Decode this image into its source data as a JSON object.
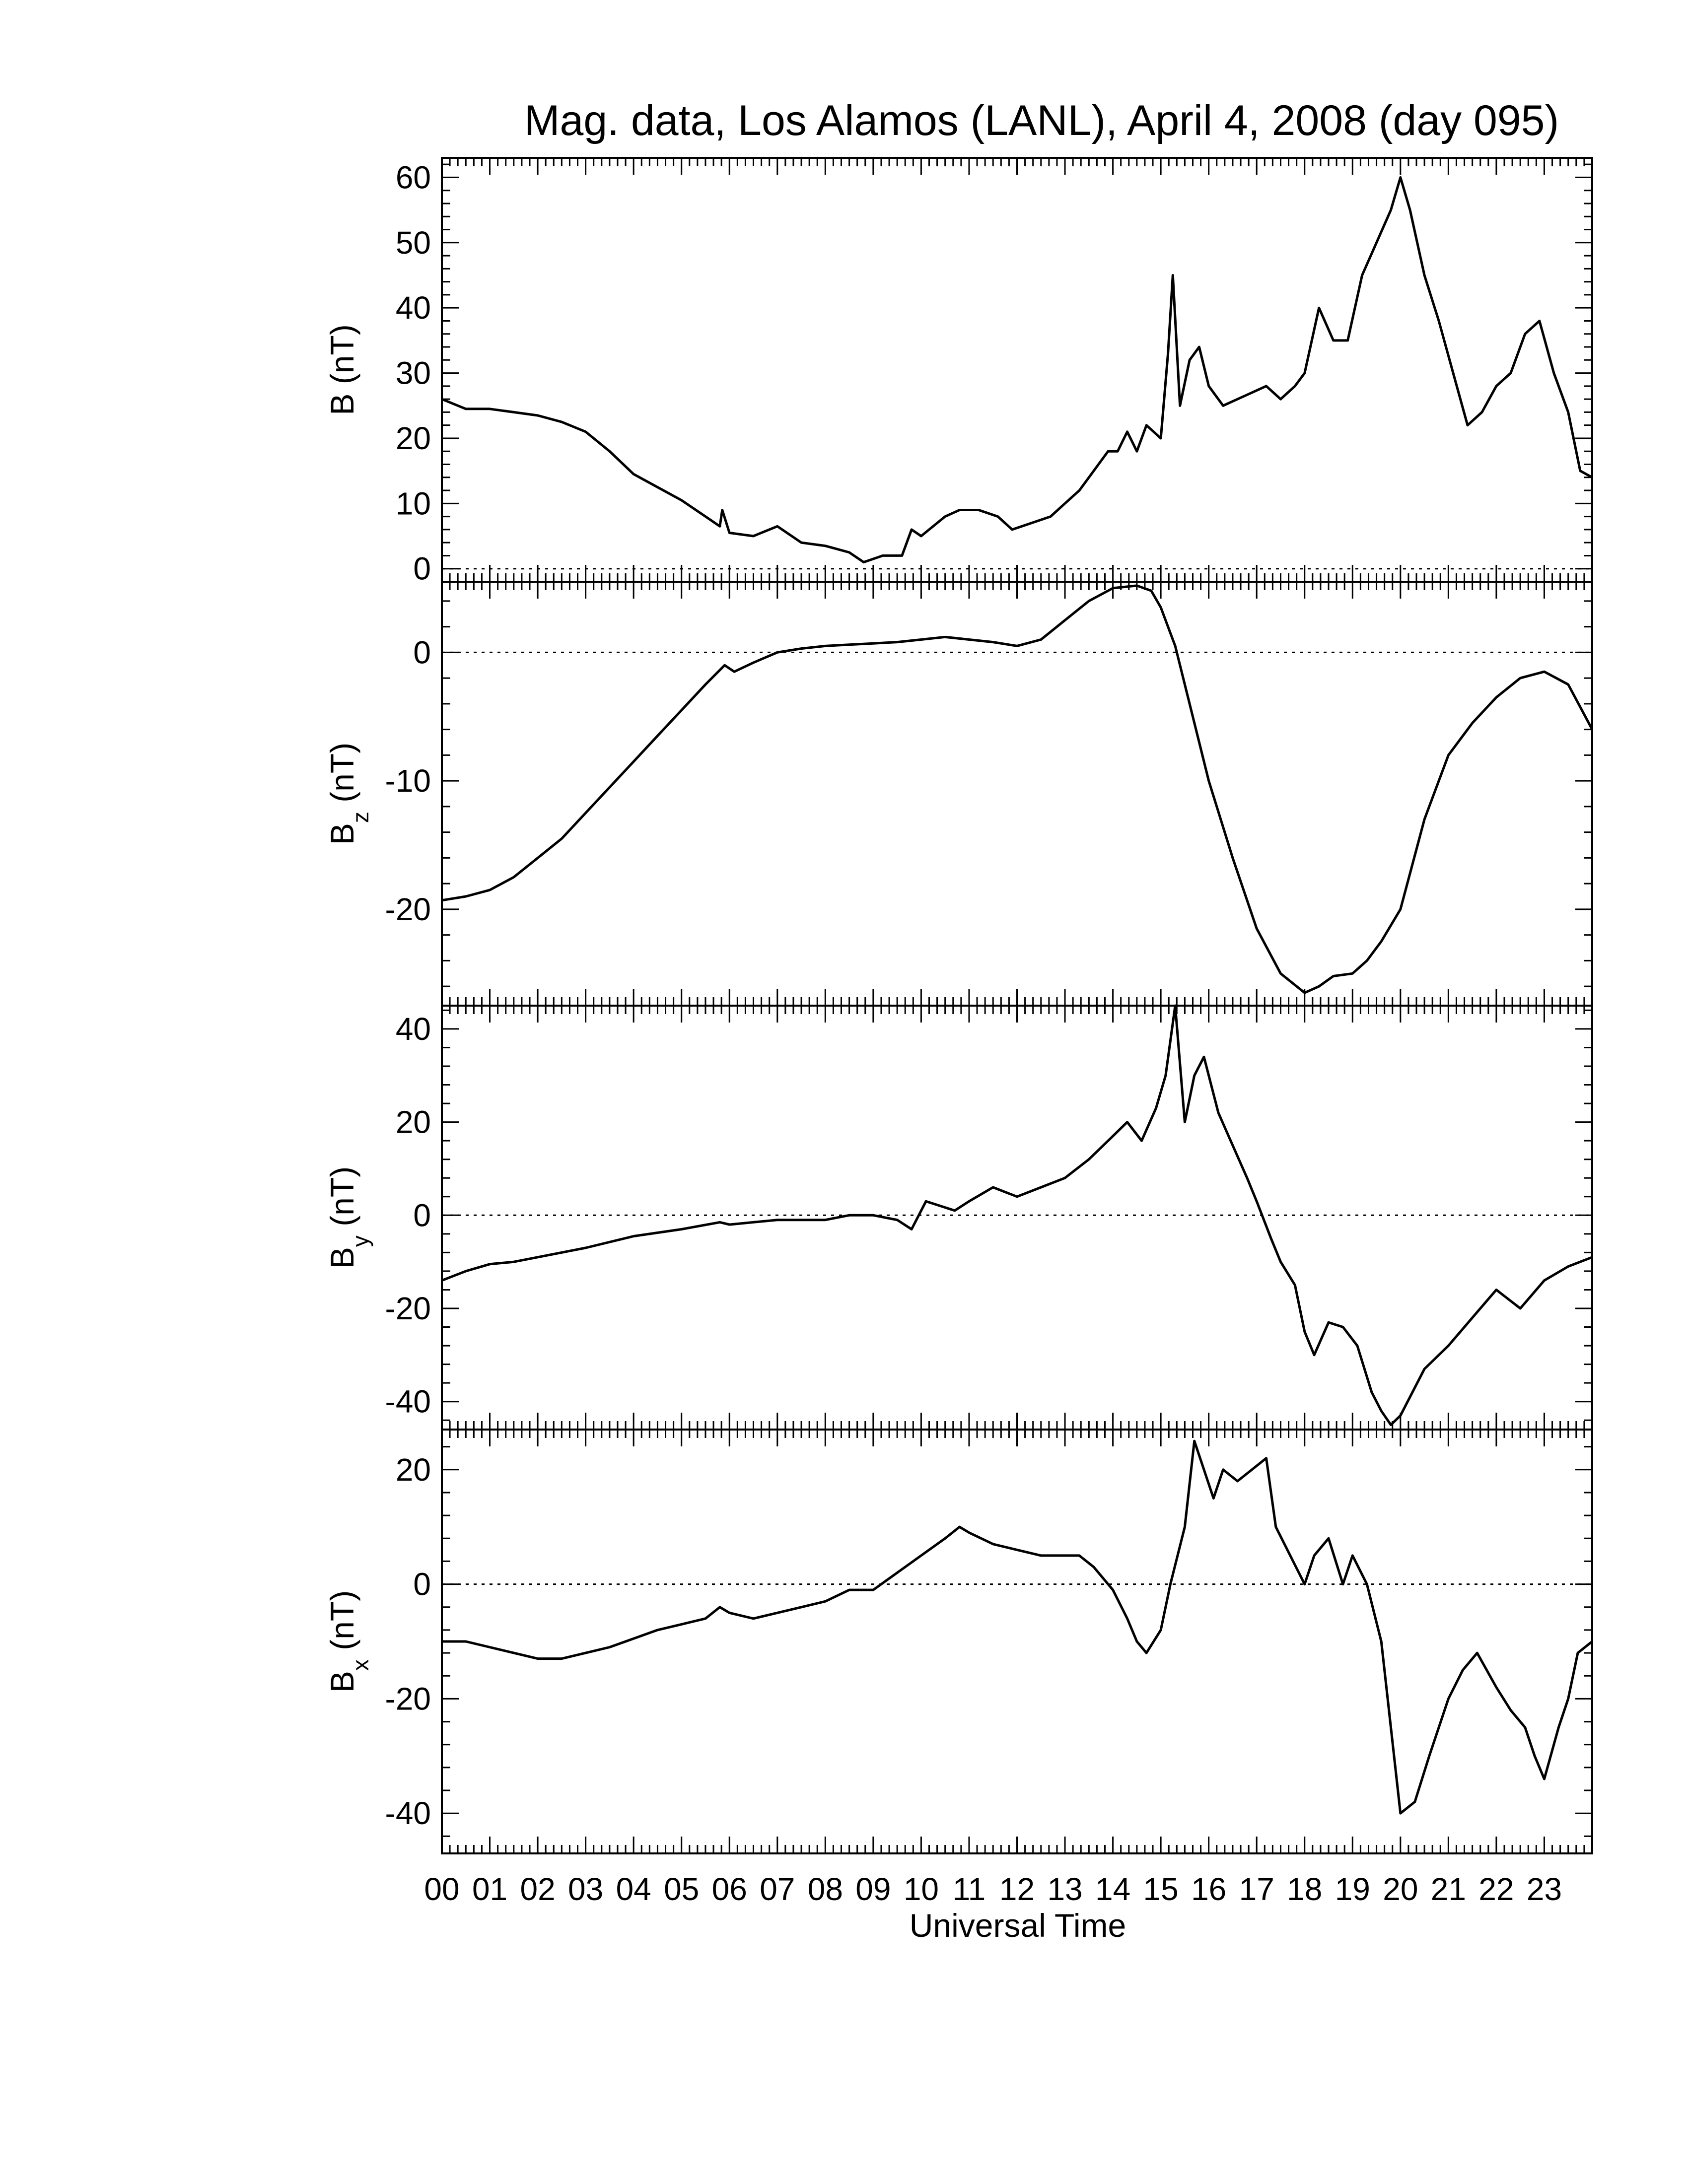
{
  "figure": {
    "title": "Mag. data, Los Alamos (LANL), April 4, 2008 (day 095)",
    "xlabel": "Universal Time"
  },
  "chart_data": [
    {
      "type": "line",
      "ylabel_main": "B",
      "ylabel_sub": "",
      "ylabel_unit": "(nT)",
      "ylim": [
        -2,
        63
      ],
      "yticks": [
        0,
        10,
        20,
        30,
        40,
        50,
        60
      ],
      "ytick_labels": [
        "0",
        "10",
        "20",
        "30",
        "40",
        "50",
        "60"
      ],
      "zero_line": true,
      "series": [
        {
          "x": [
            0.0,
            0.5,
            1.0,
            1.5,
            2.0,
            2.5,
            3.0,
            3.5,
            4.0,
            4.5,
            5.0,
            5.5,
            5.8,
            5.85,
            6.0,
            6.5,
            7.0,
            7.5,
            8.0,
            8.5,
            8.8,
            9.2,
            9.6,
            9.8,
            10.0,
            10.5,
            10.8,
            11.2,
            11.6,
            11.9,
            12.3,
            12.7,
            13.0,
            13.3,
            13.6,
            13.9,
            14.1,
            14.3,
            14.5,
            14.7,
            15.0,
            15.15,
            15.25,
            15.4,
            15.6,
            15.8,
            16.0,
            16.3,
            16.6,
            16.9,
            17.2,
            17.5,
            17.8,
            18.0,
            18.3,
            18.6,
            18.9,
            19.2,
            19.5,
            19.8,
            20.0,
            20.2,
            20.5,
            20.8,
            21.1,
            21.4,
            21.7,
            22.0,
            22.3,
            22.6,
            22.9,
            23.2,
            23.5,
            23.75,
            24.0
          ],
          "y": [
            26,
            24.5,
            24.5,
            24,
            23.5,
            22.5,
            21,
            18,
            14.5,
            12.5,
            10.5,
            8,
            6.5,
            9,
            5.5,
            5,
            6.5,
            4,
            3.5,
            2.5,
            1,
            2,
            2,
            6,
            5,
            8,
            9,
            9,
            8,
            6,
            7,
            8,
            10,
            12,
            15,
            18,
            18,
            21,
            18,
            22,
            20,
            33,
            45,
            25,
            32,
            34,
            28,
            25,
            26,
            27,
            28,
            26,
            28,
            30,
            40,
            35,
            35,
            45,
            50,
            55,
            60,
            55,
            45,
            38,
            30,
            22,
            24,
            28,
            30,
            36,
            38,
            30,
            24,
            15,
            14
          ]
        }
      ]
    },
    {
      "type": "line",
      "ylabel_main": "B",
      "ylabel_sub": "z",
      "ylabel_unit": "(nT)",
      "ylim": [
        -27.5,
        5.5
      ],
      "yticks": [
        0,
        -10,
        -20
      ],
      "ytick_labels": [
        "0",
        "-10",
        "-20"
      ],
      "zero_line": true,
      "series": [
        {
          "x": [
            0.0,
            0.5,
            1.0,
            1.5,
            2.0,
            2.5,
            3.0,
            3.5,
            4.0,
            4.5,
            5.0,
            5.5,
            5.9,
            6.1,
            6.5,
            7.0,
            7.5,
            8.0,
            8.5,
            9.0,
            9.5,
            10.0,
            10.5,
            11.0,
            11.5,
            12.0,
            12.5,
            13.0,
            13.5,
            14.0,
            14.5,
            14.8,
            15.0,
            15.3,
            15.6,
            16.0,
            16.5,
            17.0,
            17.5,
            18.0,
            18.3,
            18.6,
            19.0,
            19.3,
            19.6,
            20.0,
            20.5,
            21.0,
            21.5,
            22.0,
            22.5,
            23.0,
            23.5,
            24.0
          ],
          "y": [
            -19.3,
            -19,
            -18.5,
            -17.5,
            -16,
            -14.5,
            -12.5,
            -10.5,
            -8.5,
            -6.5,
            -4.5,
            -2.5,
            -1,
            -1.5,
            -0.8,
            0,
            0.3,
            0.5,
            0.6,
            0.7,
            0.8,
            1,
            1.2,
            1,
            0.8,
            0.5,
            1,
            2.5,
            4,
            5,
            5.2,
            4.8,
            3.5,
            0.5,
            -4,
            -10,
            -16,
            -21.5,
            -25,
            -26.5,
            -26,
            -25.2,
            -25,
            -24,
            -22.5,
            -20,
            -13,
            -8,
            -5.5,
            -3.5,
            -2,
            -1.5,
            -2.5,
            -6
          ]
        }
      ]
    },
    {
      "type": "line",
      "ylabel_main": "B",
      "ylabel_sub": "y",
      "ylabel_unit": "(nT)",
      "ylim": [
        -46,
        45
      ],
      "yticks": [
        40,
        20,
        0,
        -20,
        -40
      ],
      "ytick_labels": [
        "40",
        "20",
        "0",
        "-20",
        "-40"
      ],
      "zero_line": true,
      "series": [
        {
          "x": [
            0.0,
            0.5,
            1.0,
            1.5,
            2.0,
            3.0,
            4.0,
            5.0,
            5.8,
            6.0,
            7.0,
            8.0,
            8.5,
            9.0,
            9.5,
            9.8,
            10.1,
            10.4,
            10.7,
            11.0,
            11.5,
            12.0,
            12.5,
            13.0,
            13.5,
            14.0,
            14.3,
            14.6,
            14.9,
            15.1,
            15.3,
            15.5,
            15.7,
            15.9,
            16.2,
            16.5,
            16.8,
            17.0,
            17.3,
            17.5,
            17.8,
            18.0,
            18.2,
            18.5,
            18.8,
            19.1,
            19.4,
            19.6,
            19.8,
            20.0,
            20.5,
            21.0,
            21.5,
            22.0,
            22.5,
            23.0,
            23.5,
            24.0
          ],
          "y": [
            -14,
            -12,
            -10.5,
            -10,
            -9,
            -7,
            -4.5,
            -3,
            -1.5,
            -2,
            -1,
            -1,
            0,
            0,
            -1,
            -3,
            3,
            2,
            1,
            3,
            6,
            4,
            6,
            8,
            12,
            17,
            20,
            16,
            23,
            30,
            45,
            20,
            30,
            34,
            22,
            15,
            8,
            3,
            -5,
            -10,
            -15,
            -25,
            -30,
            -23,
            -24,
            -28,
            -38,
            -42,
            -45,
            -43,
            -33,
            -28,
            -22,
            -16,
            -20,
            -14,
            -11,
            -9
          ]
        }
      ]
    },
    {
      "type": "line",
      "ylabel_main": "B",
      "ylabel_sub": "x",
      "ylabel_unit": "(nT)",
      "ylim": [
        -47,
        27
      ],
      "yticks": [
        20,
        0,
        -20,
        -40
      ],
      "ytick_labels": [
        "20",
        "0",
        "-20",
        "-40"
      ],
      "zero_line": true,
      "series": [
        {
          "x": [
            0.0,
            0.5,
            1.0,
            1.5,
            2.0,
            2.5,
            3.0,
            3.5,
            4.0,
            4.5,
            5.0,
            5.5,
            5.8,
            6.0,
            6.5,
            7.0,
            7.5,
            8.0,
            8.5,
            9.0,
            9.5,
            10.0,
            10.5,
            10.8,
            11.0,
            11.5,
            12.0,
            12.5,
            13.0,
            13.3,
            13.6,
            14.0,
            14.3,
            14.5,
            14.7,
            15.0,
            15.2,
            15.5,
            15.7,
            15.9,
            16.1,
            16.3,
            16.6,
            16.9,
            17.2,
            17.4,
            17.7,
            18.0,
            18.2,
            18.5,
            18.8,
            19.0,
            19.3,
            19.6,
            19.8,
            20.0,
            20.3,
            20.6,
            21.0,
            21.3,
            21.6,
            22.0,
            22.3,
            22.6,
            22.8,
            23.0,
            23.3,
            23.5,
            23.7,
            24.0
          ],
          "y": [
            -10,
            -10,
            -11,
            -12,
            -13,
            -13,
            -12,
            -11,
            -9.5,
            -8,
            -7,
            -6,
            -4,
            -5,
            -6,
            -5,
            -4,
            -3,
            -1,
            -1,
            2,
            5,
            8,
            10,
            9,
            7,
            6,
            5,
            5,
            5,
            3,
            -1,
            -6,
            -10,
            -12,
            -8,
            0,
            10,
            25,
            20,
            15,
            20,
            18,
            20,
            22,
            10,
            5,
            0,
            5,
            8,
            0,
            5,
            0,
            -10,
            -25,
            -40,
            -38,
            -30,
            -20,
            -15,
            -12,
            -18,
            -22,
            -25,
            -30,
            -34,
            -25,
            -20,
            -12,
            -10
          ]
        }
      ]
    }
  ],
  "x_axis": {
    "xlim": [
      0,
      24
    ],
    "tick_labels": [
      "00",
      "01",
      "02",
      "03",
      "04",
      "05",
      "06",
      "07",
      "08",
      "09",
      "10",
      "11",
      "12",
      "13",
      "14",
      "15",
      "16",
      "17",
      "18",
      "19",
      "20",
      "21",
      "22",
      "23"
    ]
  }
}
